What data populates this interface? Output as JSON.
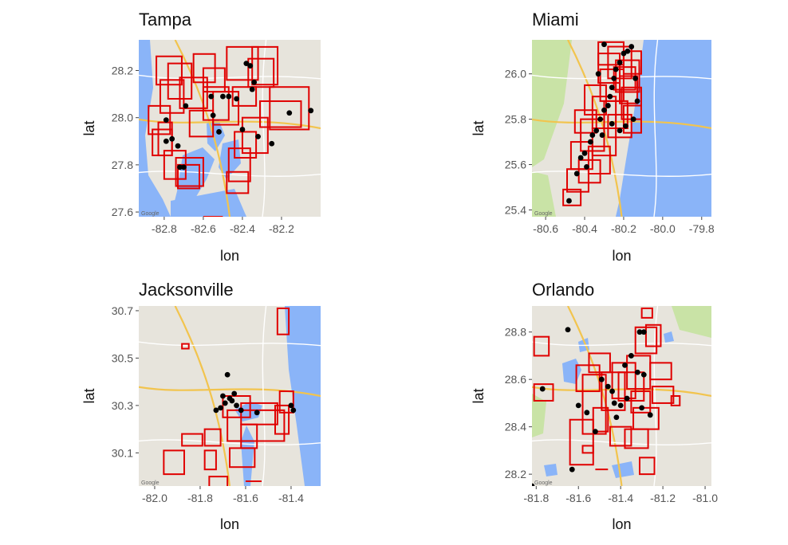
{
  "figure": {
    "panels": [
      {
        "title": "Tampa",
        "xlabel": "lon",
        "ylabel": "lat",
        "x_ticks": [
          -82.8,
          -82.6,
          -82.4,
          -82.2
        ],
        "y_ticks": [
          27.6,
          27.8,
          28.0,
          28.2
        ],
        "xlim": [
          -82.93,
          -82.0
        ],
        "ylim": [
          27.58,
          28.33
        ],
        "points": [
          [
            -82.79,
            27.99
          ],
          [
            -82.69,
            28.05
          ],
          [
            -82.76,
            27.91
          ],
          [
            -82.73,
            27.88
          ],
          [
            -82.79,
            27.9
          ],
          [
            -82.72,
            27.79
          ],
          [
            -82.7,
            27.79
          ],
          [
            -82.56,
            28.09
          ],
          [
            -82.5,
            28.09
          ],
          [
            -82.47,
            28.09
          ],
          [
            -82.43,
            28.08
          ],
          [
            -82.55,
            28.01
          ],
          [
            -82.52,
            27.94
          ],
          [
            -82.38,
            28.23
          ],
          [
            -82.36,
            28.22
          ],
          [
            -82.34,
            28.15
          ],
          [
            -82.35,
            28.12
          ],
          [
            -82.4,
            27.95
          ],
          [
            -82.32,
            27.92
          ],
          [
            -82.25,
            27.89
          ],
          [
            -82.16,
            28.02
          ],
          [
            -82.05,
            28.03
          ]
        ],
        "boxes": [
          [
            -82.88,
            28.05,
            -82.77,
            27.93
          ],
          [
            -82.83,
            27.98,
            -82.76,
            27.84
          ],
          [
            -82.8,
            27.86,
            -82.69,
            27.74
          ],
          [
            -82.74,
            27.83,
            -82.6,
            27.71
          ],
          [
            -82.78,
            28.23,
            -82.66,
            28.08
          ],
          [
            -82.72,
            28.17,
            -82.58,
            28.04
          ],
          [
            -82.65,
            28.27,
            -82.54,
            28.15
          ],
          [
            -82.6,
            28.13,
            -82.47,
            27.99
          ],
          [
            -82.55,
            28.11,
            -82.42,
            27.97
          ],
          [
            -82.48,
            28.3,
            -82.32,
            28.16
          ],
          [
            -82.35,
            28.3,
            -82.22,
            28.14
          ],
          [
            -82.31,
            28.07,
            -82.1,
            27.96
          ],
          [
            -82.4,
            28.0,
            -82.27,
            27.85
          ],
          [
            -82.47,
            27.87,
            -82.36,
            27.73
          ],
          [
            -82.48,
            27.77,
            -82.37,
            27.68
          ],
          [
            -82.84,
            28.26,
            -82.71,
            28.14
          ],
          [
            -82.67,
            28.03,
            -82.55,
            27.92
          ],
          [
            -82.86,
            27.95,
            -82.76,
            27.84
          ],
          [
            -82.45,
            28.13,
            -82.33,
            28.05
          ],
          [
            -82.26,
            28.13,
            -82.06,
            27.95
          ],
          [
            -82.73,
            27.8,
            -82.62,
            27.7
          ],
          [
            -82.82,
            28.16,
            -82.7,
            28.02
          ],
          [
            -82.6,
            28.21,
            -82.49,
            28.11
          ],
          [
            -82.37,
            28.25,
            -82.24,
            28.13
          ],
          [
            -82.44,
            27.94,
            -82.33,
            27.83
          ]
        ],
        "extra_lines": [
          [
            -82.6,
            27.58,
            -82.5,
            27.58
          ]
        ]
      },
      {
        "title": "Miami",
        "xlabel": "lon",
        "ylabel": "lat",
        "x_ticks": [
          -80.6,
          -80.4,
          -80.2,
          -80.0,
          -79.8
        ],
        "y_ticks": [
          25.4,
          25.6,
          25.8,
          26.0
        ],
        "xlim": [
          -80.67,
          -79.75
        ],
        "ylim": [
          25.37,
          26.15
        ],
        "points": [
          [
            -80.48,
            25.44
          ],
          [
            -80.44,
            25.56
          ],
          [
            -80.42,
            25.63
          ],
          [
            -80.4,
            25.65
          ],
          [
            -80.39,
            25.59
          ],
          [
            -80.37,
            25.7
          ],
          [
            -80.36,
            25.73
          ],
          [
            -80.34,
            25.75
          ],
          [
            -80.32,
            25.8
          ],
          [
            -80.3,
            25.84
          ],
          [
            -80.28,
            25.86
          ],
          [
            -80.27,
            25.9
          ],
          [
            -80.26,
            25.94
          ],
          [
            -80.25,
            25.98
          ],
          [
            -80.24,
            26.02
          ],
          [
            -80.22,
            26.05
          ],
          [
            -80.2,
            26.09
          ],
          [
            -80.18,
            26.1
          ],
          [
            -80.16,
            26.12
          ],
          [
            -80.14,
            25.98
          ],
          [
            -80.13,
            25.88
          ],
          [
            -80.15,
            25.8
          ],
          [
            -80.19,
            25.77
          ],
          [
            -80.22,
            25.75
          ],
          [
            -80.26,
            25.78
          ],
          [
            -80.31,
            25.73
          ],
          [
            -80.33,
            26.0
          ],
          [
            -80.3,
            26.13
          ]
        ],
        "boxes": [
          [
            -80.51,
            25.49,
            -80.42,
            25.42
          ],
          [
            -80.49,
            25.58,
            -80.38,
            25.48
          ],
          [
            -80.47,
            25.7,
            -80.36,
            25.58
          ],
          [
            -80.42,
            25.8,
            -80.3,
            25.66
          ],
          [
            -80.36,
            25.9,
            -80.24,
            25.76
          ],
          [
            -80.32,
            26.02,
            -80.2,
            25.88
          ],
          [
            -80.28,
            26.12,
            -80.16,
            25.98
          ],
          [
            -80.24,
            26.06,
            -80.12,
            25.92
          ],
          [
            -80.21,
            25.94,
            -80.11,
            25.8
          ],
          [
            -80.33,
            26.14,
            -80.2,
            26.04
          ],
          [
            -80.36,
            25.76,
            -80.24,
            25.64
          ],
          [
            -80.28,
            25.82,
            -80.16,
            25.72
          ],
          [
            -80.2,
            25.86,
            -80.11,
            25.74
          ],
          [
            -80.4,
            25.95,
            -80.29,
            25.82
          ],
          [
            -80.45,
            25.84,
            -80.34,
            25.74
          ],
          [
            -80.33,
            26.09,
            -80.22,
            25.96
          ],
          [
            -80.22,
            25.99,
            -80.13,
            25.87
          ],
          [
            -80.3,
            25.88,
            -80.18,
            25.76
          ],
          [
            -80.25,
            26.03,
            -80.14,
            25.93
          ],
          [
            -80.38,
            25.68,
            -80.27,
            25.56
          ],
          [
            -80.43,
            25.62,
            -80.32,
            25.52
          ],
          [
            -80.2,
            26.1,
            -80.11,
            26.0
          ]
        ],
        "extra_lines": []
      },
      {
        "title": "Jacksonville",
        "xlabel": "lon",
        "ylabel": "lat",
        "x_ticks": [
          -82.0,
          -81.8,
          -81.6,
          -81.4
        ],
        "y_ticks": [
          30.1,
          30.3,
          30.5,
          30.7
        ],
        "xlim": [
          -82.07,
          -81.27
        ],
        "ylim": [
          29.96,
          30.72
        ],
        "points": [
          [
            -81.68,
            30.43
          ],
          [
            -81.67,
            30.33
          ],
          [
            -81.66,
            30.32
          ],
          [
            -81.69,
            30.31
          ],
          [
            -81.71,
            30.29
          ],
          [
            -81.73,
            30.28
          ],
          [
            -81.62,
            30.28
          ],
          [
            -81.55,
            30.27
          ],
          [
            -81.4,
            30.3
          ],
          [
            -81.39,
            30.28
          ],
          [
            -81.65,
            30.35
          ],
          [
            -81.64,
            30.3
          ],
          [
            -81.7,
            30.34
          ]
        ],
        "boxes": [
          [
            -81.46,
            30.71,
            -81.41,
            30.6
          ],
          [
            -81.88,
            30.56,
            -81.85,
            30.54
          ],
          [
            -81.7,
            30.34,
            -81.58,
            30.25
          ],
          [
            -81.68,
            30.28,
            -81.43,
            30.15
          ],
          [
            -81.62,
            30.31,
            -81.46,
            30.22
          ],
          [
            -81.45,
            30.36,
            -81.39,
            30.27
          ],
          [
            -81.88,
            30.18,
            -81.79,
            30.13
          ],
          [
            -81.78,
            30.2,
            -81.71,
            30.13
          ],
          [
            -81.78,
            30.11,
            -81.73,
            30.03
          ],
          [
            -81.67,
            30.12,
            -81.56,
            30.04
          ],
          [
            -81.96,
            30.11,
            -81.87,
            30.01
          ],
          [
            -81.76,
            30.0,
            -81.68,
            29.95
          ],
          [
            -81.62,
            30.22,
            -81.55,
            30.12
          ],
          [
            -81.47,
            30.3,
            -81.41,
            30.18
          ]
        ],
        "extra_lines": [
          [
            -81.6,
            29.98,
            -81.53,
            29.98
          ]
        ]
      },
      {
        "title": "Orlando",
        "xlabel": "lon",
        "ylabel": "lat",
        "x_ticks": [
          -81.8,
          -81.6,
          -81.4,
          -81.2,
          -81.0
        ],
        "y_ticks": [
          28.2,
          28.4,
          28.6,
          28.8
        ],
        "xlim": [
          -81.82,
          -80.97
        ],
        "ylim": [
          28.15,
          28.91
        ],
        "points": [
          [
            -81.77,
            28.56
          ],
          [
            -81.65,
            28.81
          ],
          [
            -81.6,
            28.49
          ],
          [
            -81.56,
            28.46
          ],
          [
            -81.52,
            28.38
          ],
          [
            -81.49,
            28.6
          ],
          [
            -81.46,
            28.57
          ],
          [
            -81.44,
            28.55
          ],
          [
            -81.43,
            28.5
          ],
          [
            -81.4,
            28.49
          ],
          [
            -81.38,
            28.66
          ],
          [
            -81.37,
            28.52
          ],
          [
            -81.35,
            28.7
          ],
          [
            -81.32,
            28.63
          ],
          [
            -81.31,
            28.8
          ],
          [
            -81.29,
            28.62
          ],
          [
            -81.3,
            28.48
          ],
          [
            -81.29,
            28.8
          ],
          [
            -81.63,
            28.22
          ],
          [
            -81.82,
            28.15
          ],
          [
            -81.26,
            28.45
          ],
          [
            -81.42,
            28.44
          ]
        ],
        "boxes": [
          [
            -81.81,
            28.78,
            -81.74,
            28.7
          ],
          [
            -81.81,
            28.58,
            -81.72,
            28.51
          ],
          [
            -81.64,
            28.43,
            -81.53,
            28.24
          ],
          [
            -81.58,
            28.62,
            -81.47,
            28.37
          ],
          [
            -81.61,
            28.66,
            -81.5,
            28.55
          ],
          [
            -81.55,
            28.71,
            -81.45,
            28.63
          ],
          [
            -81.49,
            28.63,
            -81.38,
            28.47
          ],
          [
            -81.44,
            28.67,
            -81.33,
            28.52
          ],
          [
            -81.37,
            28.7,
            -81.26,
            28.56
          ],
          [
            -81.33,
            28.82,
            -81.23,
            28.71
          ],
          [
            -81.3,
            28.9,
            -81.25,
            28.86
          ],
          [
            -81.26,
            28.67,
            -81.16,
            28.6
          ],
          [
            -81.25,
            28.57,
            -81.15,
            28.5
          ],
          [
            -81.34,
            28.48,
            -81.22,
            28.39
          ],
          [
            -81.38,
            28.39,
            -81.27,
            28.31
          ],
          [
            -81.31,
            28.27,
            -81.24,
            28.2
          ],
          [
            -81.45,
            28.4,
            -81.35,
            28.32
          ],
          [
            -81.58,
            28.32,
            -81.53,
            28.29
          ],
          [
            -81.28,
            28.83,
            -81.21,
            28.74
          ],
          [
            -81.41,
            28.63,
            -81.29,
            28.51
          ],
          [
            -81.16,
            28.53,
            -81.12,
            28.49
          ],
          [
            -81.53,
            28.48,
            -81.46,
            28.38
          ],
          [
            -81.35,
            28.55,
            -81.26,
            28.46
          ]
        ],
        "extra_lines": [
          [
            -81.52,
            28.22,
            -81.46,
            28.22
          ]
        ]
      }
    ],
    "colors": {
      "box": "#e00000",
      "point": "#000000",
      "land": "#e7e4dc",
      "water": "#8ab4f8",
      "park": "#c9e3a6"
    }
  }
}
